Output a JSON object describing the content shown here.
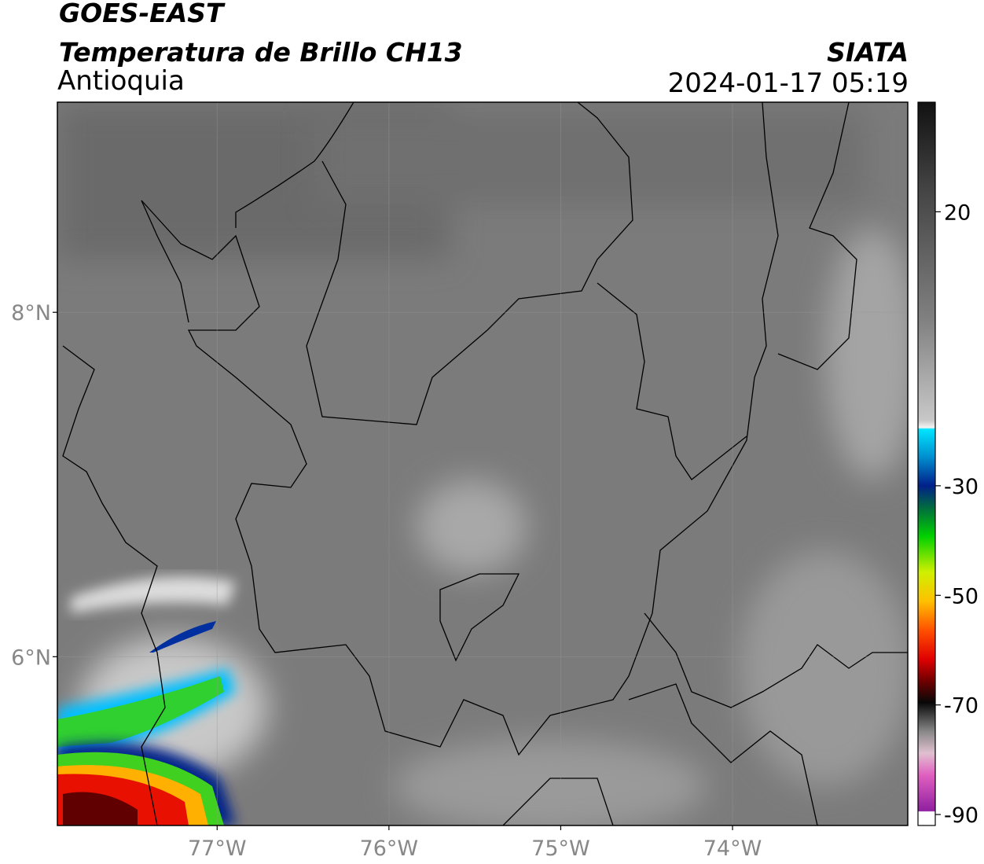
{
  "header": {
    "title": "GOES-EAST",
    "subtitle": "Temperatura de Brillo CH13",
    "region": "Antioquia",
    "source": "SIATA",
    "datetime": "2024-01-17 05:19"
  },
  "map": {
    "xlim": [
      -77.93,
      -72.98
    ],
    "ylim": [
      5.02,
      9.22
    ],
    "xticks": [
      {
        "value": -77,
        "label": "77°W"
      },
      {
        "value": -76,
        "label": "76°W"
      },
      {
        "value": -75,
        "label": "75°W"
      },
      {
        "value": -74,
        "label": "74°W"
      }
    ],
    "yticks": [
      {
        "value": 8,
        "label": "8°N"
      },
      {
        "value": 6,
        "label": "6°N"
      }
    ],
    "grid": true
  },
  "colorbar": {
    "lim": [
      -92,
      40
    ],
    "ticks": [
      20,
      -30,
      -50,
      -70,
      -90
    ]
  }
}
